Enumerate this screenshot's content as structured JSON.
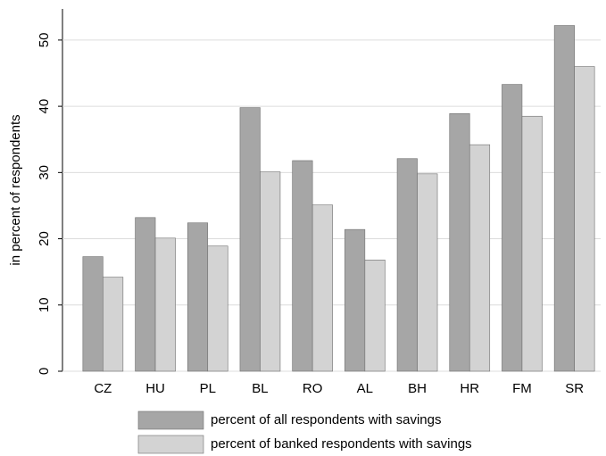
{
  "chart_data": {
    "type": "bar",
    "y_label": "in percent of respondents",
    "categories": [
      "CZ",
      "HU",
      "PL",
      "BL",
      "RO",
      "AL",
      "BH",
      "HR",
      "FM",
      "SR"
    ],
    "series": [
      {
        "name": "percent of all respondents with savings",
        "color": "#a6a6a6",
        "values": [
          17.3,
          23.2,
          22.4,
          39.8,
          31.8,
          21.4,
          32.1,
          38.9,
          43.3,
          52.2
        ]
      },
      {
        "name": "percent of banked respondents with savings",
        "color": "#d3d3d3",
        "values": [
          14.2,
          20.1,
          18.9,
          30.1,
          25.1,
          16.8,
          29.8,
          34.2,
          38.5,
          46.0
        ]
      }
    ],
    "ylim": [
      0,
      54.7
    ],
    "yticks": [
      0,
      10,
      20,
      30,
      40,
      50
    ],
    "grid": true
  }
}
